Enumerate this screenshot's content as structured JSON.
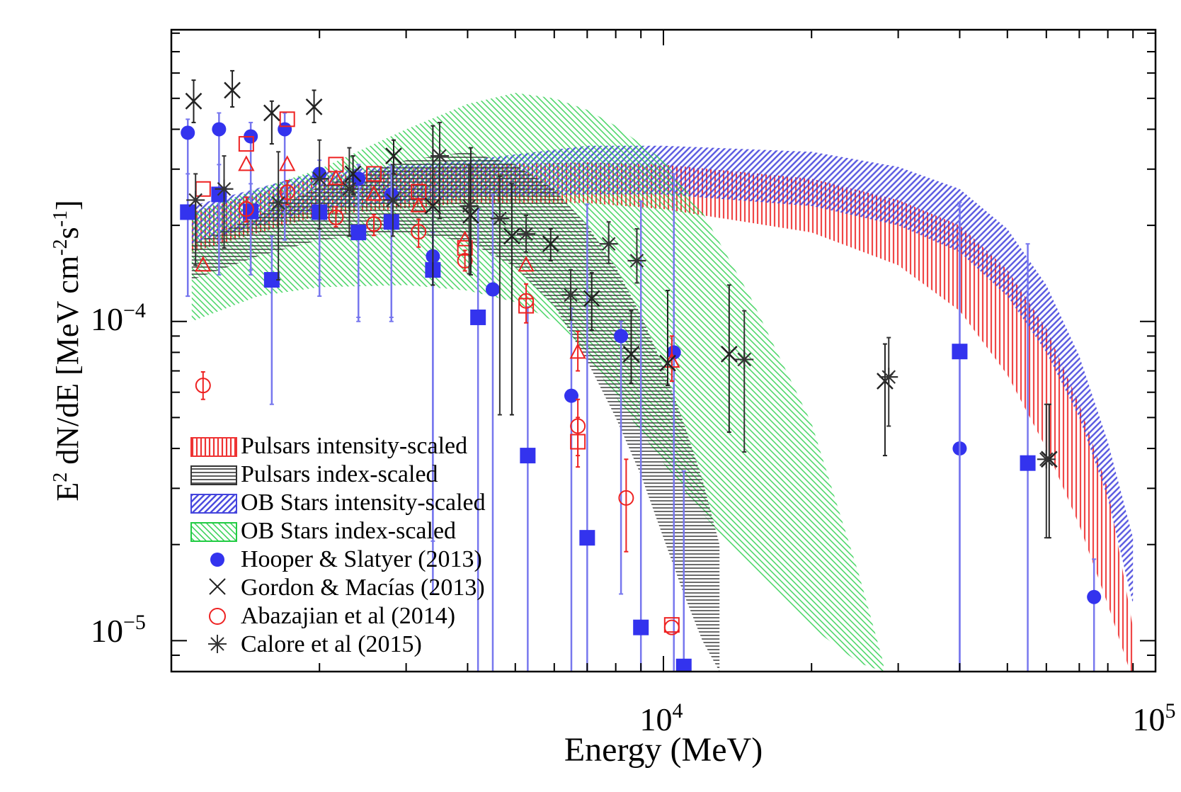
{
  "chart_data": {
    "type": "scatter",
    "title": "",
    "xlabel": "Energy (MeV)",
    "ylabel": "E2 dN/dE [MeV cm-2s-1]",
    "ylabel_parts": {
      "e": "E",
      "sup_2": "2",
      "mid": " dN/dE [MeV cm",
      "sup_neg2": "-2",
      "s": "s",
      "sup_neg1": "-1",
      "end": "]"
    },
    "xscale": "log",
    "yscale": "log",
    "xlim": [
      1000,
      100000
    ],
    "ylim": [
      8e-06,
      0.00082
    ],
    "x_tick_labels": [
      {
        "value": 10000,
        "base": "10",
        "exp": "4"
      },
      {
        "value": 100000,
        "base": "10",
        "exp": "5"
      }
    ],
    "y_tick_labels": [
      {
        "value": 0.0001,
        "base": "10",
        "exp": "−4"
      },
      {
        "value": 1e-05,
        "base": "10",
        "exp": "−5"
      }
    ],
    "colors": {
      "hooper": "#3333ee",
      "hooper_err": "#7777ee",
      "abazajian": "#ee2222",
      "calore": "#333333",
      "gordon": "#222222",
      "band_pulsar_int": "#ee3333",
      "band_pulsar_idx": "#333333",
      "band_ob_int": "#4444dd",
      "band_ob_idx": "#22cc44"
    },
    "legend": {
      "position": "bottom-left",
      "entries": [
        {
          "key": "band_pulsar_int",
          "label": "Pulsars intensity-scaled",
          "kind": "band"
        },
        {
          "key": "band_pulsar_idx",
          "label": "Pulsars index-scaled",
          "kind": "band"
        },
        {
          "key": "band_ob_int",
          "label": "OB Stars intensity-scaled",
          "kind": "band"
        },
        {
          "key": "band_ob_idx",
          "label": "OB Stars index-scaled",
          "kind": "band"
        },
        {
          "key": "hooper",
          "label": "Hooper & Slatyer (2013)",
          "kind": "filled-circle"
        },
        {
          "key": "gordon",
          "label": "Gordon & Macías (2013)",
          "kind": "cross"
        },
        {
          "key": "abazajian",
          "label": "Abazajian et al (2014)",
          "kind": "open-circle"
        },
        {
          "key": "calore",
          "label": "Calore et al (2015)",
          "kind": "star"
        }
      ]
    },
    "bands": [
      {
        "name": "Pulsars intensity-scaled",
        "color": "band_pulsar_int",
        "hatch": "vertical",
        "x": [
          1100,
          2000,
          4000,
          7000,
          10000,
          20000,
          30000,
          40000,
          50000,
          60000,
          70000,
          80000,
          90000
        ],
        "low": [
          0.000165,
          0.000215,
          0.000235,
          0.000235,
          0.000225,
          0.00019,
          0.00015,
          0.000108,
          6.8e-05,
          4e-05,
          2.3e-05,
          1.3e-05,
          7.5e-06
        ],
        "high": [
          0.00022,
          0.000285,
          0.00031,
          0.000315,
          0.00031,
          0.00028,
          0.00024,
          0.0002,
          0.000145,
          9.5e-05,
          5.5e-05,
          3e-05,
          1.1e-05
        ]
      },
      {
        "name": "OB Stars intensity-scaled",
        "color": "band_ob_int",
        "hatch": "diagonal",
        "x": [
          1100,
          2000,
          4000,
          7000,
          10000,
          20000,
          30000,
          40000,
          50000,
          60000,
          70000,
          80000,
          90000
        ],
        "low": [
          0.000175,
          0.000225,
          0.000245,
          0.00025,
          0.00025,
          0.00023,
          0.0002,
          0.000165,
          0.00012,
          8e-05,
          5e-05,
          2.8e-05,
          1.3e-05
        ],
        "high": [
          0.00023,
          0.000295,
          0.00032,
          0.000355,
          0.000355,
          0.00034,
          0.000305,
          0.00026,
          0.000195,
          0.00013,
          7.8e-05,
          4.2e-05,
          2.1e-05
        ]
      },
      {
        "name": "OB Stars index-scaled",
        "color": "band_ob_idx",
        "hatch": "anti-diagonal",
        "x": [
          1100,
          1500,
          2000,
          3000,
          4000,
          5000,
          6000,
          7000,
          8000,
          10000,
          12000,
          15000,
          20000,
          25000,
          28000
        ],
        "low": [
          0.0001,
          0.00012,
          0.000128,
          0.00013,
          0.000125,
          0.000115,
          0.0001,
          7.8e-05,
          5.8e-05,
          3.6e-05,
          2.5e-05,
          1.7e-05,
          1.1e-05,
          8.5e-06,
          8e-06
        ],
        "high": [
          0.00022,
          0.00026,
          0.0003,
          0.0004,
          0.00048,
          0.00052,
          0.0005,
          0.00046,
          0.00041,
          0.00032,
          0.00022,
          0.00012,
          4.8e-05,
          1.6e-05,
          8.5e-06
        ]
      },
      {
        "name": "Pulsars index-scaled",
        "color": "band_pulsar_idx",
        "hatch": "horizontal",
        "x": [
          1100,
          1500,
          2000,
          3000,
          4000,
          5000,
          6000,
          7000,
          8000,
          9000,
          10000,
          11000,
          12000,
          13000
        ],
        "low": [
          0.000135,
          0.00016,
          0.00018,
          0.00019,
          0.000178,
          0.000148,
          0.000112,
          7.5e-05,
          5e-05,
          3.3e-05,
          2.1e-05,
          1.4e-05,
          1e-05,
          8e-06
        ],
        "high": [
          0.000175,
          0.000215,
          0.000265,
          0.00032,
          0.00034,
          0.00031,
          0.00026,
          0.0002,
          0.000148,
          0.000105,
          7.2e-05,
          4.8e-05,
          3.2e-05,
          2e-05
        ]
      }
    ],
    "series": [
      {
        "name": "Hooper & Slatyer (2013)",
        "key": "hooper",
        "marker": "filled-circle",
        "x": [
          1080,
          1250,
          1450,
          1700,
          2000,
          2400,
          2800,
          3400,
          4500,
          6500,
          8200,
          10500,
          40000,
          75000
        ],
        "y": [
          0.00039,
          0.0004,
          0.00038,
          0.0004,
          0.00029,
          0.00028,
          0.00025,
          0.00016,
          0.000126,
          5.85e-05,
          9e-05,
          8e-05,
          4e-05,
          1.37e-05
        ],
        "low": [
          0.00012,
          0.00018,
          0.00014,
          0.00018,
          0.00012,
          0.0001,
          0.0001,
          1.4e-05,
          8e-06,
          8e-06,
          1.4e-05,
          8e-06,
          8e-06,
          8e-06
        ],
        "high": [
          0.00043,
          0.00045,
          0.00042,
          0.00045,
          0.00032,
          0.00031,
          0.00029,
          0.00019,
          0.00025,
          0.00011,
          0.0001,
          0.00029,
          0.00023,
          1.8e-05
        ]
      },
      {
        "name": "Hooper & Slatyer squares",
        "key": "hooper",
        "marker": "filled-square",
        "x": [
          1080,
          1250,
          1450,
          1600,
          2000,
          2400,
          2800,
          3400,
          4200,
          5300,
          7000,
          9000,
          11000,
          40000,
          55000
        ],
        "y": [
          0.00022,
          0.00025,
          0.000221,
          0.000135,
          0.00022,
          0.00019,
          0.000205,
          0.000145,
          0.000103,
          3.8e-05,
          2.1e-05,
          1.1e-05,
          8.3e-06,
          8.05e-05,
          3.6e-05
        ],
        "low": [
          0.00012,
          0.00014,
          0.000145,
          5.5e-05,
          0.000135,
          0.000103,
          0.000103,
          2.05e-05,
          8e-06,
          8e-06,
          8e-06,
          8e-06,
          8e-06,
          8e-06,
          8e-06
        ],
        "high": [
          0.00029,
          0.00031,
          0.00027,
          0.000185,
          0.000275,
          0.00026,
          0.00031,
          0.00026,
          0.000225,
          0.000111,
          0.000233,
          0.000238,
          3.4e-05,
          0.000236,
          0.000175
        ]
      },
      {
        "name": "Abazajian et al (2014)",
        "key": "abazajian",
        "marker": "open-circle",
        "x": [
          1160,
          1420,
          1720,
          2160,
          2580,
          3180,
          3950,
          5260,
          6700,
          8400,
          10400
        ],
        "y": [
          6.3e-05,
          0.000225,
          0.000254,
          0.000212,
          0.000202,
          0.000191,
          0.000155,
          0.000116,
          4.7e-05,
          2.8e-05,
          1.1e-05
        ],
        "low": [
          5.7e-05,
          0.000205,
          0.000232,
          0.000198,
          0.000186,
          0.000171,
          0.000144,
          9.9e-05,
          3.8e-05,
          1.9e-05,
          1.1e-05
        ],
        "high": [
          6.95e-05,
          0.000245,
          0.000276,
          0.000229,
          0.000216,
          0.000209,
          0.000167,
          0.000131,
          5.7e-05,
          3.7e-05,
          1.1e-05
        ]
      },
      {
        "name": "Abazajian open squares",
        "key": "abazajian",
        "marker": "open-square",
        "x": [
          1160,
          1420,
          1720,
          2160,
          2580,
          3180,
          3950,
          5260,
          6700,
          10400
        ],
        "y": [
          0.00026,
          0.00036,
          0.00043,
          0.00031,
          0.00029,
          0.000255,
          0.00017,
          0.000112,
          4.2e-05,
          1.12e-05
        ],
        "low": [
          0.00026,
          0.00036,
          0.00043,
          0.00031,
          0.00029,
          0.000255,
          0.00017,
          0.000112,
          3.5e-05,
          1.12e-05
        ],
        "high": [
          0.00026,
          0.00036,
          0.00043,
          0.00031,
          0.00029,
          0.000255,
          0.00017,
          0.000112,
          5e-05,
          1.12e-05
        ]
      },
      {
        "name": "Abazajian open triangles",
        "key": "abazajian",
        "marker": "open-triangle",
        "x": [
          1160,
          1420,
          1720,
          2160,
          2580,
          3180,
          3950,
          5260,
          6700,
          10400
        ],
        "y": [
          0.00015,
          0.00031,
          0.00031,
          0.00028,
          0.00025,
          0.00023,
          0.00018,
          0.00015,
          8e-05,
          7.5e-05
        ],
        "low": [
          0.00015,
          0.00031,
          0.00031,
          0.00028,
          0.00025,
          0.00023,
          0.00018,
          0.00015,
          7e-05,
          6.5e-05
        ],
        "high": [
          0.00015,
          0.00031,
          0.00031,
          0.00028,
          0.00025,
          0.00023,
          0.00018,
          0.00015,
          9.3e-05,
          9e-05
        ]
      },
      {
        "name": "Gordon & Macías (2013)",
        "key": "gordon",
        "marker": "cross",
        "x": [
          1110,
          1330,
          1600,
          1950,
          2340,
          2830,
          3400,
          4060,
          4920,
          5900,
          7150,
          8600,
          10200,
          13600,
          28200,
          60800
        ],
        "y": [
          0.00049,
          0.00053,
          0.00045,
          0.00047,
          0.00029,
          0.00033,
          0.00023,
          0.000215,
          0.000185,
          0.000175,
          0.000118,
          7.9e-05,
          7.4e-05,
          7.9e-05,
          6.5e-05,
          3.7e-05
        ],
        "low": [
          0.00042,
          0.00047,
          0.00036,
          0.00042,
          0.00025,
          0.00029,
          0.00013,
          0.00014,
          5.1e-05,
          0.000155,
          9.4e-05,
          6.4e-05,
          6.3e-05,
          4.5e-05,
          3.8e-05,
          2.1e-05
        ],
        "high": [
          0.00057,
          0.00061,
          0.00049,
          0.00053,
          0.00033,
          0.00037,
          0.00041,
          0.00035,
          0.00027,
          0.000195,
          0.000142,
          0.000108,
          0.000125,
          0.00013,
          8.5e-05,
          5.5e-05
        ]
      },
      {
        "name": "Calore et al (2015)",
        "key": "calore",
        "marker": "star",
        "x": [
          1120,
          1280,
          1650,
          2000,
          2300,
          2820,
          3510,
          4030,
          4650,
          5260,
          6480,
          7740,
          8830,
          14600,
          28700,
          60000
        ],
        "y": [
          0.00024,
          0.00026,
          0.000235,
          0.00028,
          0.00026,
          0.00024,
          0.00033,
          0.00023,
          0.00021,
          0.000188,
          0.000121,
          0.000175,
          0.000155,
          7.6e-05,
          6.7e-05,
          3.7e-05
        ],
        "low": [
          0.00015,
          0.00017,
          0.000135,
          0.000195,
          0.000185,
          0.000185,
          0.00021,
          0.000141,
          5.1e-05,
          0.000165,
          0.000101,
          0.000152,
          0.000132,
          3.9e-05,
          4.7e-05,
          2.1e-05
        ],
        "high": [
          0.00029,
          0.00033,
          0.00034,
          0.00037,
          0.00035,
          0.00031,
          0.00042,
          0.00031,
          0.000285,
          0.000215,
          0.000145,
          0.000205,
          0.000195,
          0.000108,
          8.9e-05,
          5.5e-05
        ]
      }
    ]
  }
}
